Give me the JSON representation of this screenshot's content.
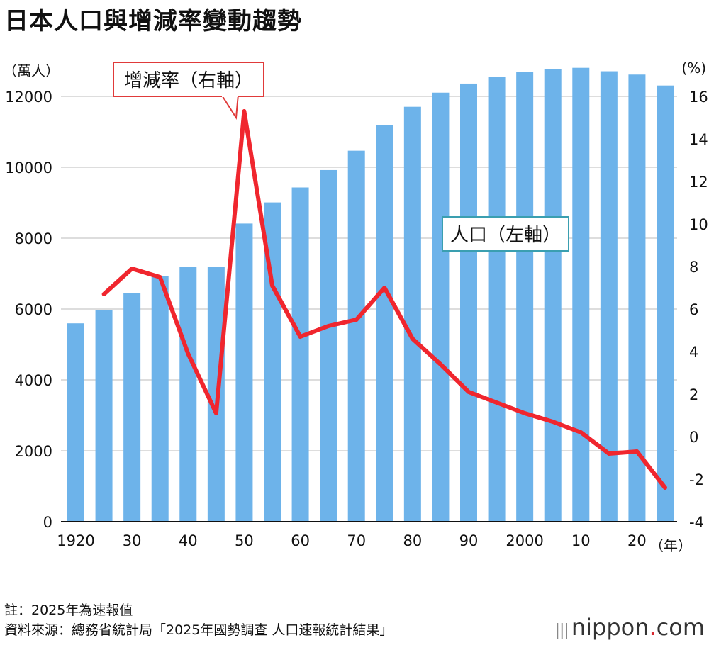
{
  "title": "日本人口與增減率變動趨勢",
  "left_unit": "（萬人）",
  "right_unit": "(%)",
  "x_unit": "（年）",
  "notes": [
    "註：2025年為速報值",
    "資料來源：總務省統計局「2025年國勢調查 人口速報統計結果」"
  ],
  "brand": {
    "mark": "|||",
    "name": "nippon",
    "dot": ".",
    "tld": "com"
  },
  "colors": {
    "bar": "#6db3ea",
    "line": "#f0262e",
    "grid": "#bbbbbb",
    "callout_red": "#e03a3a",
    "callout_teal": "#3a9fb0"
  },
  "chart_data": {
    "type": "bar+line",
    "x": [
      1920,
      1925,
      1930,
      1935,
      1940,
      1945,
      1950,
      1955,
      1960,
      1965,
      1970,
      1975,
      1980,
      1985,
      1990,
      1995,
      2000,
      2005,
      2010,
      2015,
      2020,
      2025
    ],
    "x_tick_labels": [
      {
        "x": 1920,
        "label": "1920"
      },
      {
        "x": 1930,
        "label": "30"
      },
      {
        "x": 1940,
        "label": "40"
      },
      {
        "x": 1950,
        "label": "50"
      },
      {
        "x": 1960,
        "label": "60"
      },
      {
        "x": 1970,
        "label": "70"
      },
      {
        "x": 1980,
        "label": "80"
      },
      {
        "x": 1990,
        "label": "90"
      },
      {
        "x": 2000,
        "label": "2000"
      },
      {
        "x": 2010,
        "label": "10"
      },
      {
        "x": 2020,
        "label": "20"
      }
    ],
    "series": [
      {
        "name": "人口（左軸）",
        "type": "bar",
        "axis": "left",
        "values": [
          5596,
          5974,
          6445,
          6925,
          7193,
          7200,
          8412,
          9008,
          9430,
          9921,
          10467,
          11194,
          11706,
          12105,
          12361,
          12557,
          12693,
          12777,
          12806,
          12709,
          12615,
          12306
        ]
      },
      {
        "name": "增減率（右軸）",
        "type": "line",
        "axis": "right",
        "values": [
          null,
          6.7,
          7.9,
          7.5,
          3.9,
          1.1,
          15.3,
          7.1,
          4.7,
          5.2,
          5.5,
          7.0,
          4.6,
          3.4,
          2.1,
          1.6,
          1.1,
          0.7,
          0.2,
          -0.8,
          -0.7,
          -2.4
        ]
      }
    ],
    "y_left": {
      "ylim": [
        0,
        12000
      ],
      "ticks": [
        0,
        2000,
        4000,
        6000,
        8000,
        10000,
        12000
      ]
    },
    "y_right": {
      "ylim": [
        -4,
        16
      ],
      "ticks": [
        -4,
        -2,
        0,
        2,
        4,
        6,
        8,
        10,
        12,
        14,
        16
      ]
    },
    "grid": true
  }
}
